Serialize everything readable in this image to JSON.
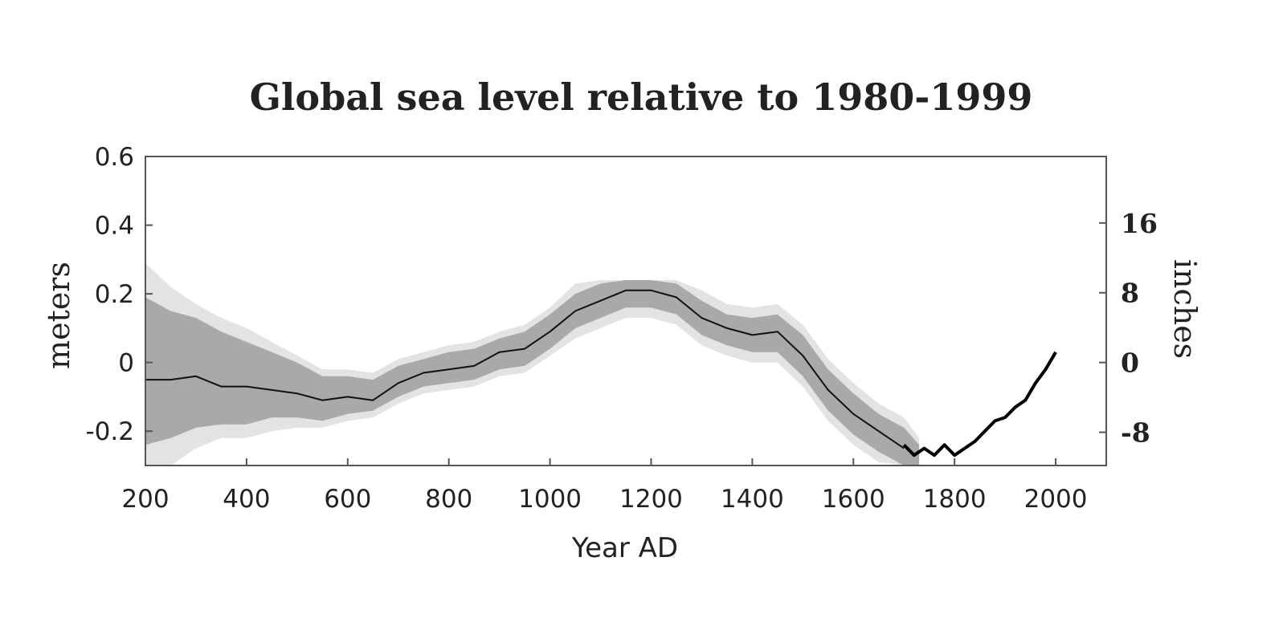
{
  "chart_data": {
    "type": "line",
    "title": "Global sea level relative to 1980-1999",
    "xlabel": "Year AD",
    "ylabel": "meters",
    "ylabel_right": "inches",
    "xlim": [
      200,
      2100
    ],
    "ylim": [
      -0.3,
      0.6
    ],
    "x_ticks": [
      "200",
      "400",
      "600",
      "800",
      "1000",
      "1200",
      "1400",
      "1600",
      "1800",
      "2000"
    ],
    "y_ticks": [
      "-0.2",
      "0",
      "0.2",
      "0.4",
      "0.6"
    ],
    "y_ticks_right": [
      "-8",
      "0",
      "8",
      "16"
    ],
    "grid": false,
    "series": [
      {
        "color": "#111111",
        "x": [
          200,
          250,
          300,
          350,
          400,
          450,
          500,
          550,
          600,
          650,
          700,
          750,
          800,
          850,
          900,
          950,
          1000,
          1050,
          1100,
          1150,
          1200,
          1250,
          1300,
          1350,
          1400,
          1450,
          1500,
          1550,
          1600,
          1650,
          1700
        ],
        "y": [
          -0.05,
          -0.05,
          -0.04,
          -0.07,
          -0.07,
          -0.08,
          -0.09,
          -0.11,
          -0.1,
          -0.11,
          -0.06,
          -0.03,
          -0.02,
          -0.01,
          0.03,
          0.04,
          0.09,
          0.15,
          0.18,
          0.21,
          0.21,
          0.19,
          0.13,
          0.1,
          0.08,
          0.09,
          0.02,
          -0.08,
          -0.15,
          -0.2,
          -0.25
        ]
      },
      {
        "color": "#000000",
        "x": [
          1700,
          1720,
          1740,
          1760,
          1780,
          1800,
          1820,
          1840,
          1860,
          1880,
          1900,
          1920,
          1940,
          1960,
          1980,
          2000
        ],
        "y": [
          -0.24,
          -0.27,
          -0.25,
          -0.27,
          -0.24,
          -0.27,
          -0.25,
          -0.23,
          -0.2,
          -0.17,
          -0.16,
          -0.13,
          -0.11,
          -0.06,
          -0.02,
          0.03
        ]
      }
    ],
    "bands": [
      {
        "color": "#a9a9a9",
        "x": [
          200,
          250,
          300,
          350,
          400,
          450,
          500,
          550,
          600,
          650,
          700,
          750,
          800,
          850,
          900,
          950,
          1000,
          1050,
          1100,
          1150,
          1200,
          1250,
          1300,
          1350,
          1400,
          1450,
          1500,
          1550,
          1600,
          1650,
          1700,
          1730
        ],
        "upper": [
          0.19,
          0.15,
          0.13,
          0.09,
          0.06,
          0.03,
          0.0,
          -0.04,
          -0.04,
          -0.05,
          -0.01,
          0.01,
          0.03,
          0.04,
          0.07,
          0.09,
          0.14,
          0.2,
          0.23,
          0.24,
          0.24,
          0.23,
          0.18,
          0.14,
          0.13,
          0.14,
          0.08,
          -0.02,
          -0.09,
          -0.15,
          -0.19,
          -0.24
        ],
        "lower": [
          -0.24,
          -0.22,
          -0.19,
          -0.18,
          -0.18,
          -0.16,
          -0.16,
          -0.17,
          -0.15,
          -0.14,
          -0.1,
          -0.07,
          -0.06,
          -0.05,
          -0.02,
          -0.01,
          0.04,
          0.1,
          0.13,
          0.16,
          0.16,
          0.14,
          0.08,
          0.05,
          0.03,
          0.03,
          -0.04,
          -0.14,
          -0.21,
          -0.26,
          -0.3,
          -0.3
        ]
      },
      {
        "color": "#e3e3e3",
        "x": [
          200,
          250,
          300,
          350,
          400,
          450,
          500,
          550,
          600,
          650,
          700,
          750,
          800,
          850,
          900,
          950,
          1000,
          1050,
          1100,
          1150,
          1200,
          1250,
          1300,
          1350,
          1400,
          1450,
          1500,
          1550,
          1600,
          1650,
          1700,
          1730
        ],
        "upper": [
          0.29,
          0.22,
          0.17,
          0.13,
          0.1,
          0.06,
          0.02,
          -0.02,
          -0.02,
          -0.03,
          0.01,
          0.03,
          0.05,
          0.06,
          0.09,
          0.11,
          0.16,
          0.23,
          0.24,
          0.24,
          0.24,
          0.24,
          0.21,
          0.17,
          0.16,
          0.17,
          0.11,
          0.01,
          -0.06,
          -0.12,
          -0.16,
          -0.22
        ],
        "lower": [
          -0.3,
          -0.3,
          -0.25,
          -0.22,
          -0.22,
          -0.2,
          -0.19,
          -0.19,
          -0.17,
          -0.16,
          -0.12,
          -0.09,
          -0.08,
          -0.07,
          -0.04,
          -0.03,
          0.02,
          0.07,
          0.1,
          0.13,
          0.13,
          0.11,
          0.05,
          0.02,
          0.0,
          0.0,
          -0.07,
          -0.17,
          -0.24,
          -0.29,
          -0.3,
          -0.3
        ]
      }
    ]
  }
}
